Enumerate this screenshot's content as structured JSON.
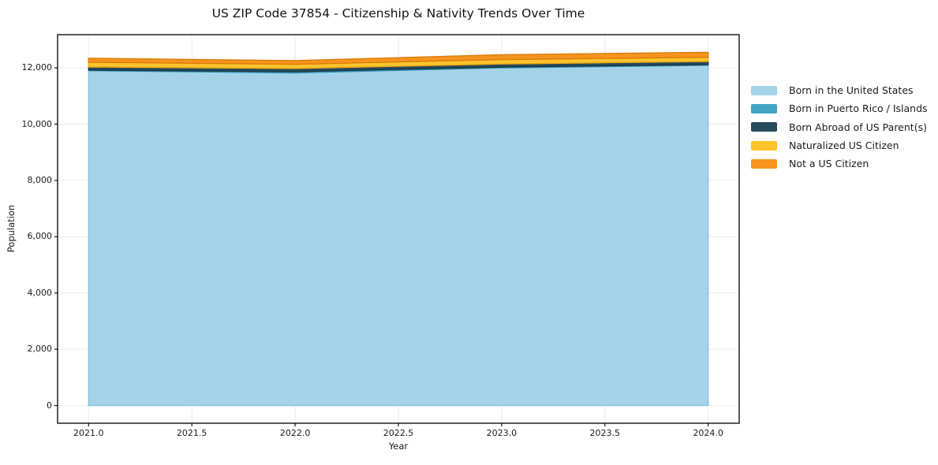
{
  "chart_data": {
    "type": "area",
    "stacked": true,
    "title": "US ZIP Code 37854 - Citizenship & Nativity Trends Over Time",
    "xlabel": "Year",
    "ylabel": "Population",
    "x": [
      2021,
      2022,
      2023,
      2024
    ],
    "series": [
      {
        "name": "Born in the United States",
        "color": "#a4d3e9",
        "edge": "#8cc0da",
        "values": [
          11900,
          11820,
          12000,
          12090
        ]
      },
      {
        "name": "Born in Puerto Rico / Islands",
        "color": "#42a5c2",
        "edge": "#2f8fae",
        "values": [
          20,
          45,
          30,
          25
        ]
      },
      {
        "name": "Born Abroad of US Parent(s)",
        "color": "#264a5d",
        "edge": "#1b3947",
        "values": [
          110,
          110,
          105,
          110
        ]
      },
      {
        "name": "Naturalized US Citizen",
        "color": "#fcc32d",
        "edge": "#eba912",
        "values": [
          170,
          150,
          160,
          150
        ]
      },
      {
        "name": "Not a US Citizen",
        "color": "#f5941f",
        "edge": "#dd7c0a",
        "values": [
          140,
          130,
          170,
          175
        ]
      }
    ],
    "xticks": {
      "values": [
        2021.0,
        2021.5,
        2022.0,
        2022.5,
        2023.0,
        2023.5,
        2024.0
      ],
      "labels": [
        "2021.0",
        "2021.5",
        "2022.0",
        "2022.5",
        "2023.0",
        "2023.5",
        "2024.0"
      ]
    },
    "yticks": {
      "values": [
        0,
        2000,
        4000,
        6000,
        8000,
        10000,
        12000
      ],
      "labels": [
        "0",
        "2,000",
        "4,000",
        "6,000",
        "8,000",
        "10,000",
        "12,000"
      ]
    },
    "xlim": [
      2020.85,
      2024.15
    ],
    "ylim": [
      -627.5,
      13177.5
    ],
    "grid": true,
    "legend_position": "right"
  },
  "colors": {
    "background": "#ffffff",
    "gridline": "#ebebeb",
    "spine": "#000000",
    "tick": "#000000"
  }
}
